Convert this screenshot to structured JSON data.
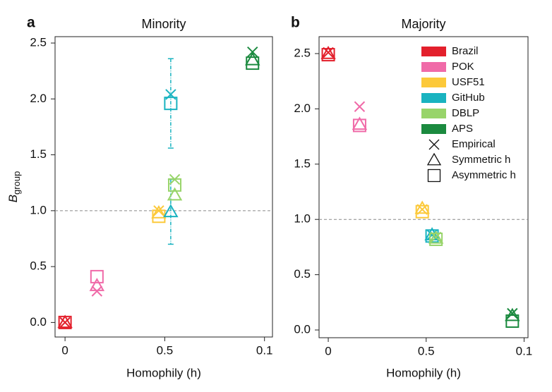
{
  "chart_data": [
    {
      "type": "scatter",
      "letter": "a",
      "title": "Minority",
      "xlabel": "Homophily (h)",
      "ylabel": "B",
      "ylabel_sub": "group",
      "xlim": [
        -0.005,
        0.104
      ],
      "xticks": [
        0.0,
        {
          "value": 0.05,
          "label": "0.5"
        },
        0.1
      ],
      "ylim": [
        -0.13,
        2.557
      ],
      "yticks": [
        {
          "value": 0,
          "label": "0.0"
        },
        0.5,
        {
          "value": 1,
          "label": "1.0"
        },
        1.5,
        {
          "value": 2,
          "label": "2.0"
        },
        2.5
      ],
      "refline": 1,
      "series": [
        {
          "color": "#e3202c",
          "x": 0.0,
          "empirical": 0.0,
          "symmetric": 0.0,
          "asymmetric": 0.0
        },
        {
          "color": "#f06aa8",
          "x": 0.016,
          "empirical": 0.28,
          "symmetric": 0.33,
          "asymmetric": 0.41
        },
        {
          "color": "#fcc93a",
          "x": 0.047,
          "empirical": 1.0,
          "symmetric": 0.98,
          "asymmetric": 0.95
        },
        {
          "color": "#19b3c0",
          "x": 0.053,
          "empirical": 2.04,
          "symmetric": 0.99,
          "asymmetric": 1.96,
          "symmetric_err": 0.29,
          "asymmetric_err": 0.4
        },
        {
          "color": "#98d46a",
          "x": 0.055,
          "empirical": 1.28,
          "symmetric": 1.14,
          "asymmetric": 1.23
        },
        {
          "color": "#1b8a3f",
          "x": 0.094,
          "empirical": 2.42,
          "symmetric": 2.35,
          "asymmetric": 2.32
        }
      ]
    },
    {
      "type": "scatter",
      "letter": "b",
      "title": "Majority",
      "xlabel": "Homophily (h)",
      "xlim": [
        -0.0047,
        0.102
      ],
      "xticks": [
        0.0,
        {
          "value": 0.05,
          "label": "0.5"
        },
        0.1
      ],
      "ylim": [
        -0.07,
        2.653
      ],
      "yticks": [
        {
          "value": 0,
          "label": "0.0"
        },
        0.5,
        {
          "value": 1,
          "label": "1.0"
        },
        1.5,
        {
          "value": 2,
          "label": "2.0"
        },
        2.5
      ],
      "refline": 1,
      "series": [
        {
          "name": "Brazil",
          "color": "#e3202c",
          "x": 0.0,
          "empirical": 2.51,
          "symmetric": 2.5,
          "asymmetric": 2.49
        },
        {
          "name": "POK",
          "color": "#f06aa8",
          "x": 0.016,
          "empirical": 2.02,
          "symmetric": 1.86,
          "asymmetric": 1.85
        },
        {
          "name": "USF51",
          "color": "#fcc93a",
          "x": 0.048,
          "empirical": 1.09,
          "symmetric": 1.1,
          "asymmetric": 1.07
        },
        {
          "name": "GitHub",
          "color": "#19b3c0",
          "x": 0.053,
          "empirical": 0.86,
          "symmetric": 0.86,
          "asymmetric": 0.85
        },
        {
          "name": "DBLP",
          "color": "#98d46a",
          "x": 0.055,
          "empirical": 0.84,
          "symmetric": 0.83,
          "asymmetric": 0.82
        },
        {
          "name": "APS",
          "color": "#1b8a3f",
          "x": 0.094,
          "empirical": 0.15,
          "symmetric": 0.13,
          "asymmetric": 0.08
        }
      ],
      "markers": [
        {
          "name": "Empirical",
          "symbol": "x"
        },
        {
          "name": "Symmetric h",
          "symbol": "triangle"
        },
        {
          "name": "Asymmetric h",
          "symbol": "square"
        }
      ]
    }
  ]
}
